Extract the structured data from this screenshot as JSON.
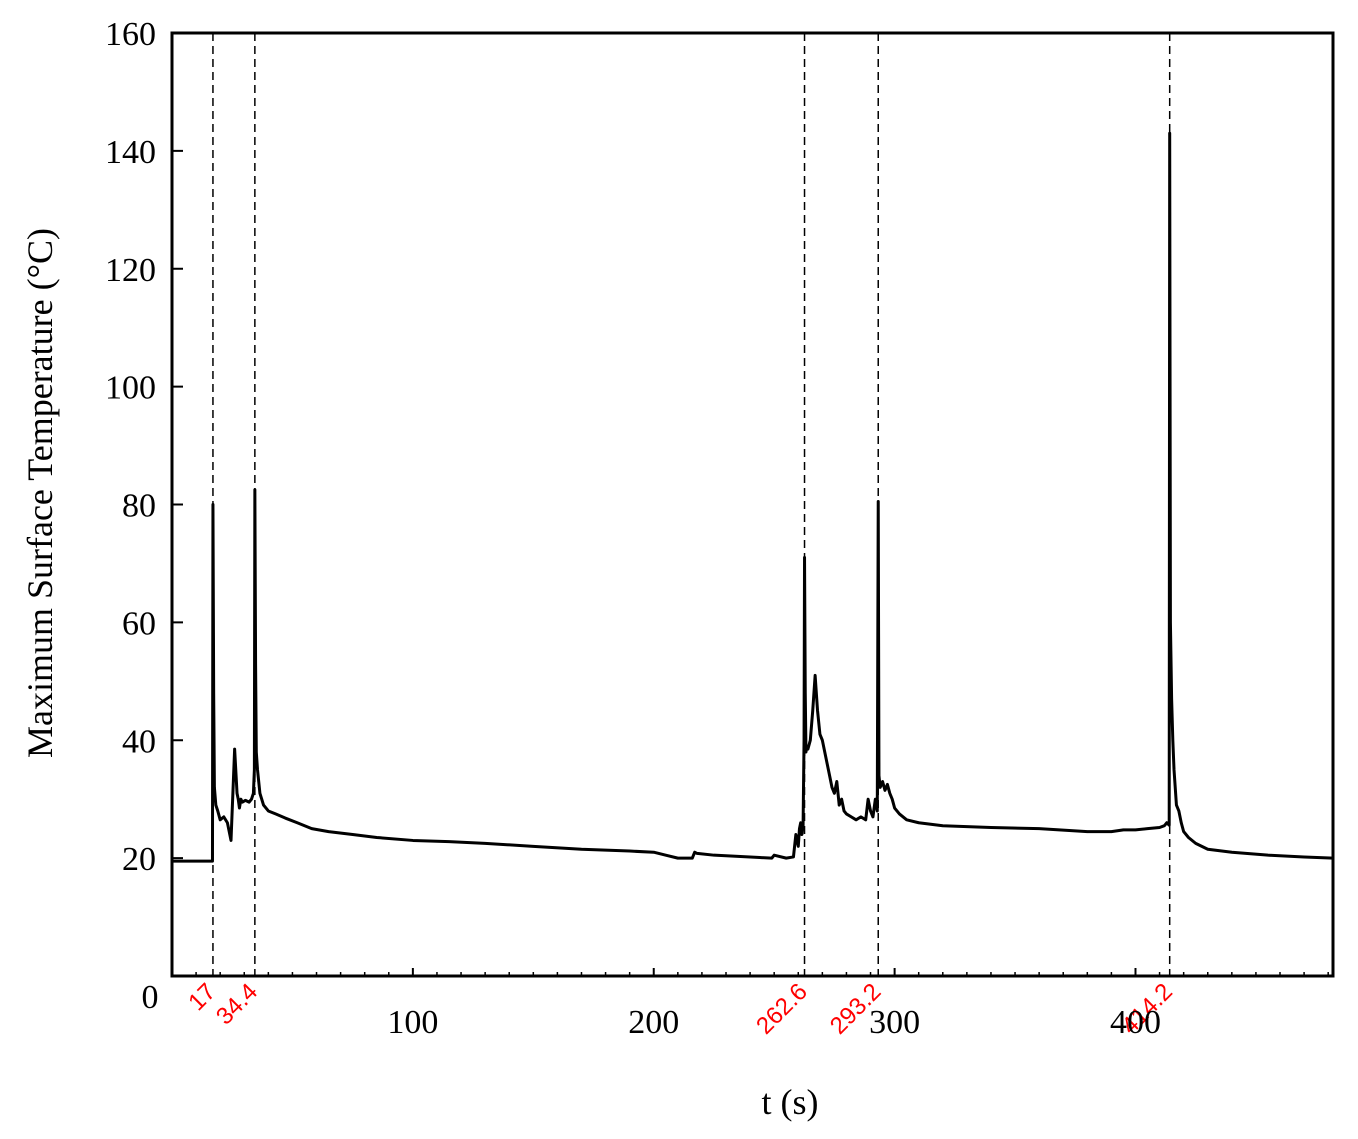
{
  "chart_data": {
    "type": "line",
    "title": "",
    "xlabel": "t (s)",
    "ylabel": "Maximum Surface Temperature (°C)",
    "xlim": [
      0,
      482
    ],
    "ylim": [
      0,
      160
    ],
    "x_ticks": [
      0,
      100,
      200,
      300,
      400
    ],
    "y_ticks": [
      20,
      40,
      60,
      80,
      100,
      120,
      140,
      160
    ],
    "grid": false,
    "colors": {
      "line": "#000000",
      "event_lines": "#000000",
      "event_labels": "#ff0000"
    },
    "events": [
      {
        "t": 17,
        "label": "17"
      },
      {
        "t": 34.4,
        "label": "34.4"
      },
      {
        "t": 262.6,
        "label": "262.6"
      },
      {
        "t": 293.2,
        "label": "293.2"
      },
      {
        "t": 414.2,
        "label": "414.2"
      }
    ],
    "series": [
      {
        "x": [
          0,
          16.8,
          17,
          17.3,
          17.6,
          18.2,
          19,
          20,
          21.5,
          23,
          24.5,
          26,
          27,
          27.5,
          28,
          28.6,
          29.2,
          30.5,
          32,
          33,
          33.8,
          34.2,
          34.4,
          34.7,
          35,
          35.5,
          36.5,
          38,
          40,
          43,
          47,
          52,
          58,
          65,
          75,
          85,
          100,
          115,
          130,
          150,
          170,
          190,
          200,
          205,
          210,
          216,
          217,
          218,
          225,
          235,
          240,
          244,
          249,
          250,
          255,
          258,
          259,
          260,
          260.5,
          261,
          261.5,
          262,
          262.4,
          262.6,
          262.9,
          263.2,
          263.5,
          264,
          265,
          266,
          267,
          268,
          269,
          270,
          271,
          272,
          273,
          274,
          275,
          276,
          277,
          278,
          279,
          280,
          282,
          284,
          286,
          288,
          289,
          290,
          291,
          292,
          292.8,
          293.2,
          293.5,
          294,
          295,
          296,
          297,
          298,
          299,
          300,
          302,
          305,
          310,
          320,
          340,
          360,
          380,
          390,
          395,
          400,
          405,
          410,
          412,
          413,
          414,
          414.2,
          414.5,
          415,
          415.5,
          416,
          417,
          418,
          419,
          420,
          422,
          425,
          430,
          440,
          455,
          470,
          482
        ],
        "y": [
          19.5,
          19.5,
          80,
          48,
          32,
          29,
          28,
          26.5,
          27,
          26,
          23,
          38.5,
          31,
          30,
          28.5,
          30,
          29.5,
          29.8,
          29.5,
          30,
          31,
          35,
          82.5,
          53,
          38,
          35,
          31,
          29,
          28,
          27.5,
          26.8,
          26,
          25,
          24.5,
          24,
          23.5,
          23,
          22.8,
          22.5,
          22,
          21.5,
          21.2,
          21,
          20.5,
          20,
          20,
          21,
          20.8,
          20.5,
          20.3,
          20.2,
          20.1,
          20,
          20.5,
          20,
          20.2,
          24,
          22,
          25,
          26,
          24,
          25.5,
          40,
          71,
          48,
          38,
          39,
          38.5,
          40,
          45,
          51,
          45,
          41,
          40,
          38,
          36,
          34,
          32,
          31,
          33,
          29,
          30,
          28,
          27.5,
          27,
          26.5,
          27,
          26.5,
          30,
          28,
          27,
          30,
          28,
          80.5,
          34,
          32,
          33,
          31.5,
          32.5,
          31,
          30,
          28.5,
          27.5,
          26.5,
          26,
          25.5,
          25.2,
          25,
          24.5,
          24.5,
          24.8,
          24.8,
          25,
          25.2,
          25.5,
          26,
          25.6,
          143,
          60,
          47,
          40,
          35,
          29,
          28,
          26,
          24.5,
          23.5,
          22.5,
          21.5,
          21,
          20.5,
          20.2,
          20
        ]
      }
    ]
  }
}
